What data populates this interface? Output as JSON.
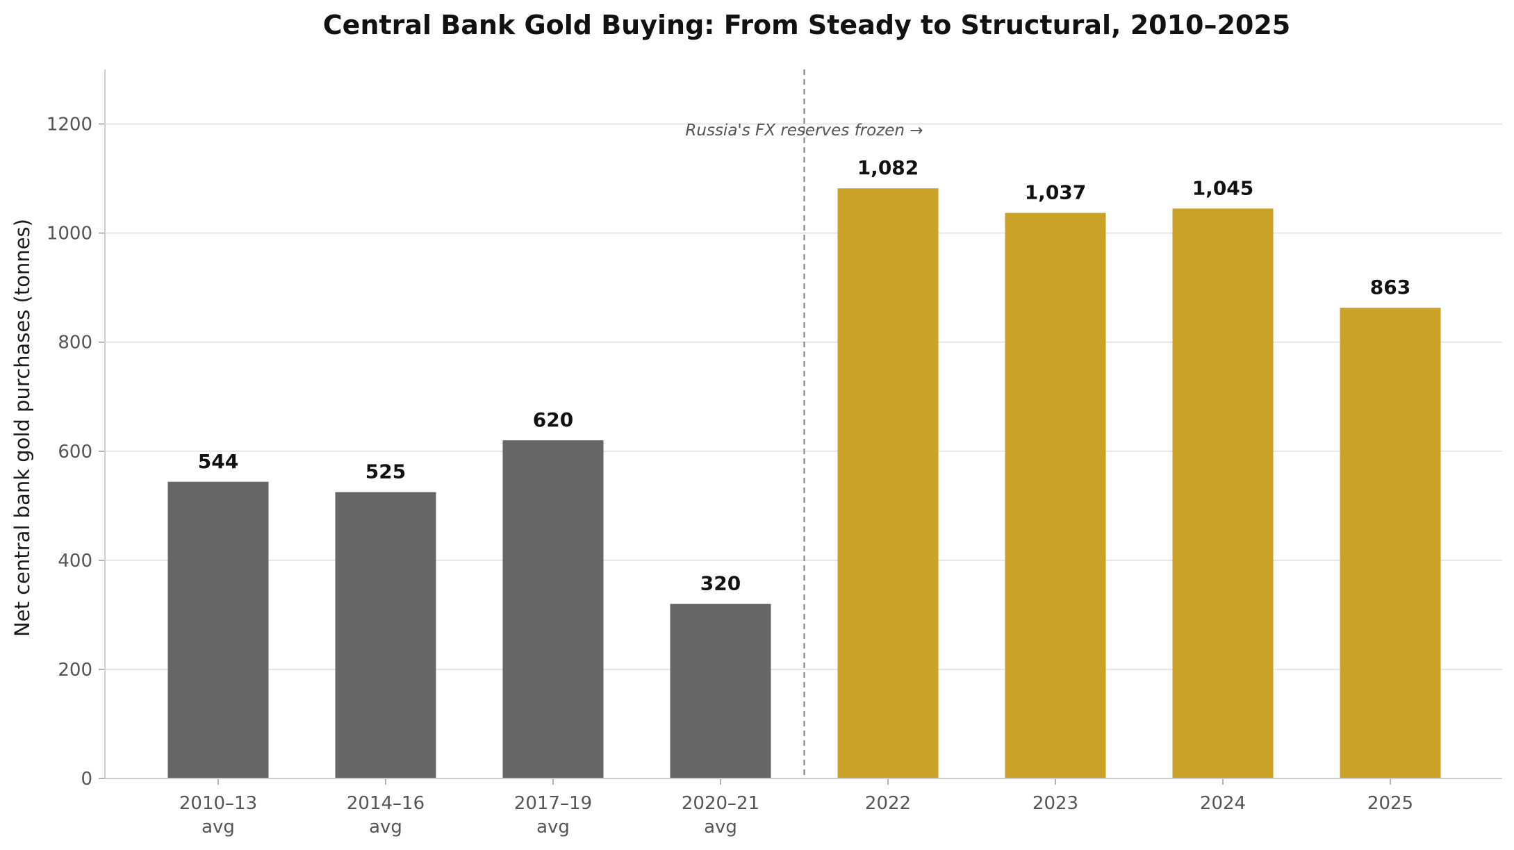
{
  "chart_data": {
    "type": "bar",
    "title": "Central Bank Gold Buying: From Steady to Structural, 2010–2025",
    "ylabel": "Net central bank gold purchases (tonnes)",
    "xlabel": "",
    "ylim": [
      0,
      1300
    ],
    "yticks": [
      0,
      200,
      400,
      600,
      800,
      1000,
      1200
    ],
    "ytick_labels": [
      "0",
      "200",
      "400",
      "600",
      "800",
      "1000",
      "1200"
    ],
    "grid": "horizontal",
    "categories": [
      {
        "line1": "2010–13",
        "line2": "avg"
      },
      {
        "line1": "2014–16",
        "line2": "avg"
      },
      {
        "line1": "2017–19",
        "line2": "avg"
      },
      {
        "line1": "2020–21",
        "line2": "avg"
      },
      {
        "line1": "2022",
        "line2": ""
      },
      {
        "line1": "2023",
        "line2": ""
      },
      {
        "line1": "2024",
        "line2": ""
      },
      {
        "line1": "2025",
        "line2": ""
      }
    ],
    "values": [
      544,
      525,
      620,
      320,
      1082,
      1037,
      1045,
      863
    ],
    "value_labels": [
      "544",
      "525",
      "620",
      "320",
      "1,082",
      "1,037",
      "1,045",
      "863"
    ],
    "bar_colors": [
      "#666666",
      "#666666",
      "#666666",
      "#666666",
      "#c9a227",
      "#c9a227",
      "#c9a227",
      "#c9a227"
    ],
    "annotation": {
      "text": "Russia's FX reserves frozen →",
      "divider_after_category_index": 3
    },
    "colors": {
      "pre_2022": "#666666",
      "post_2022": "#c9a227",
      "grid": "#e6e6e6",
      "divider": "#8a8a8a"
    }
  }
}
